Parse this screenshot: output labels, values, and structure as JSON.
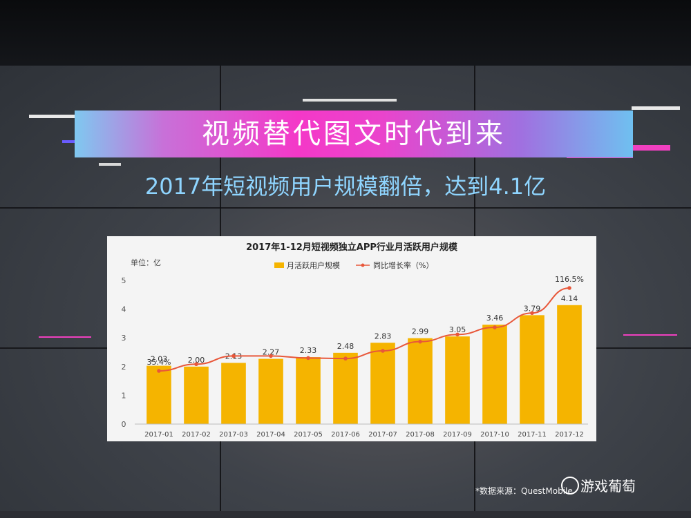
{
  "slide": {
    "title": "视频替代图文时代到来",
    "subtitle": "2017年短视频用户规模翻倍，达到4.1亿",
    "source": "*数据来源：QuestMobile",
    "watermark": "游戏葡萄"
  },
  "colors": {
    "bar": "#f5b400",
    "line": "#e8573a",
    "subtitle": "#8fd5ff",
    "title_band": "#f438c8"
  },
  "chart_data": {
    "type": "bar",
    "title": "2017年1-12月短视频独立APP行业月活跃用户规模",
    "unit_label": "单位：亿",
    "categories": [
      "2017-01",
      "2017-02",
      "2017-03",
      "2017-04",
      "2017-05",
      "2017-06",
      "2017-07",
      "2017-08",
      "2017-09",
      "2017-10",
      "2017-11",
      "2017-12"
    ],
    "series": [
      {
        "name": "月活跃用户规模",
        "type": "bar",
        "values": [
          2.03,
          2.0,
          2.13,
          2.27,
          2.33,
          2.48,
          2.83,
          2.99,
          3.05,
          3.46,
          3.79,
          4.14
        ],
        "labels": [
          "2.03",
          "2.00",
          "2.13",
          "2.27",
          "2.33",
          "2.48",
          "2.83",
          "2.99",
          "3.05",
          "3.46",
          "3.79",
          "4.14"
        ]
      },
      {
        "name": "同比增长率（%）",
        "type": "line",
        "values": [
          35.4,
          42.0,
          50.0,
          50.0,
          48.0,
          47.5,
          55.0,
          64.0,
          71.0,
          78.0,
          92.0,
          116.5
        ],
        "point_labels": {
          "0": "35.4%",
          "11": "116.5%"
        }
      }
    ],
    "ylim": [
      0,
      5
    ],
    "yticks": [
      "0",
      "1",
      "2",
      "3",
      "4",
      "5"
    ],
    "legend_position": "top-center",
    "grid": false
  }
}
